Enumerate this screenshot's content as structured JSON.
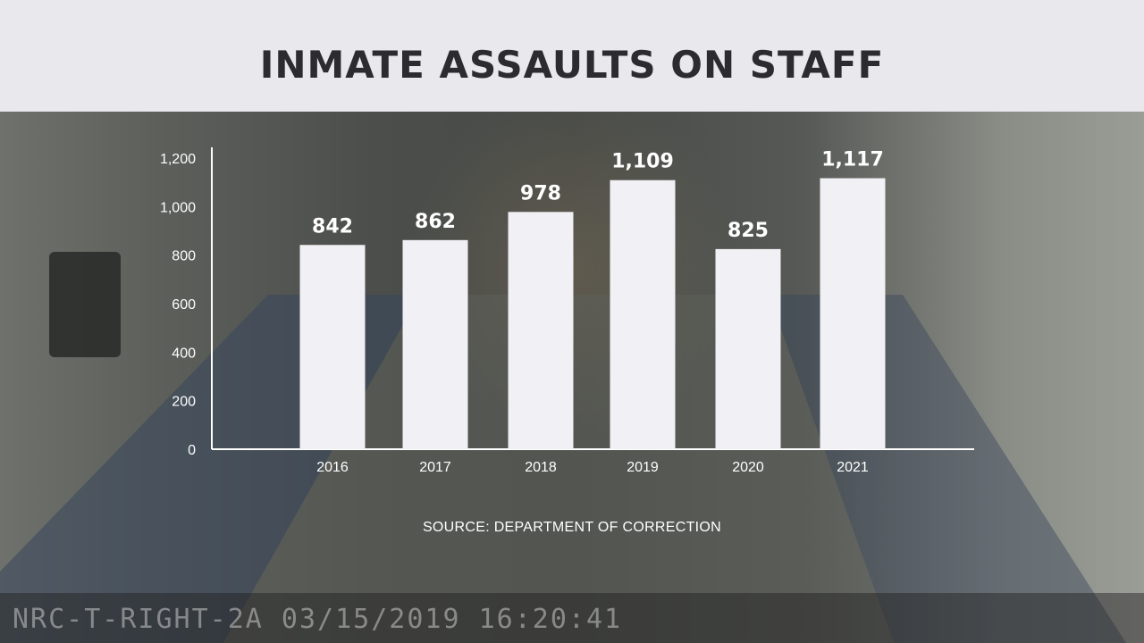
{
  "title": "INMATE ASSAULTS ON STAFF",
  "source": "SOURCE: DEPARTMENT OF CORRECTION",
  "timestamp_overlay": "NRC-T-RIGHT-2A 03/15/2019 16:20:41",
  "colors": {
    "bar": "#f1f0f5",
    "axis": "#ffffff",
    "title_band": "#e9e8ed",
    "title_text": "#2c2c2e"
  },
  "chart_data": {
    "type": "bar",
    "title": "INMATE ASSAULTS ON STAFF",
    "xlabel": "",
    "ylabel": "",
    "categories": [
      "2016",
      "2017",
      "2018",
      "2019",
      "2020",
      "2021"
    ],
    "values": [
      842,
      862,
      978,
      1109,
      825,
      1117
    ],
    "value_labels": [
      "842",
      "862",
      "978",
      "1,109",
      "825",
      "1,117"
    ],
    "yticks": [
      0,
      200,
      400,
      600,
      800,
      1000,
      1200
    ],
    "ytick_labels": [
      "0",
      "200",
      "400",
      "600",
      "800",
      "1,000",
      "1,200"
    ],
    "ylim": [
      0,
      1250
    ],
    "grid": false,
    "legend": "none"
  }
}
